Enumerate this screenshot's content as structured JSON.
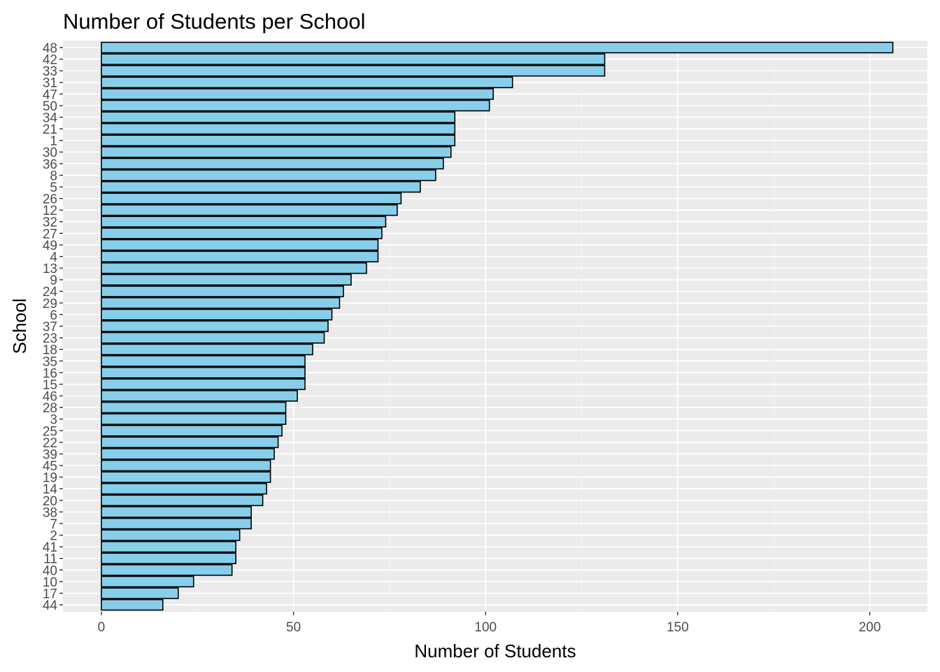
{
  "chart_data": {
    "type": "bar",
    "orientation": "horizontal",
    "title": "Number of Students per School",
    "xlabel": "Number of Students",
    "ylabel": "School",
    "xlim": [
      -10,
      215
    ],
    "x_ticks": [
      0,
      50,
      100,
      150,
      200
    ],
    "grid": true,
    "legend": "none",
    "bar_color": "#87CEEB",
    "bar_border": "#000000",
    "panel_background": "#EBEBEB",
    "categories": [
      "48",
      "42",
      "33",
      "31",
      "47",
      "50",
      "34",
      "21",
      "1",
      "30",
      "36",
      "8",
      "5",
      "26",
      "12",
      "32",
      "27",
      "49",
      "4",
      "13",
      "9",
      "24",
      "29",
      "6",
      "37",
      "23",
      "18",
      "35",
      "16",
      "15",
      "46",
      "28",
      "3",
      "25",
      "22",
      "39",
      "45",
      "19",
      "14",
      "20",
      "38",
      "7",
      "2",
      "41",
      "11",
      "40",
      "10",
      "17",
      "44"
    ],
    "values": [
      206,
      131,
      131,
      107,
      102,
      101,
      92,
      92,
      92,
      91,
      89,
      87,
      83,
      78,
      77,
      74,
      73,
      72,
      72,
      69,
      65,
      63,
      62,
      60,
      59,
      58,
      55,
      53,
      53,
      53,
      51,
      48,
      48,
      47,
      46,
      45,
      44,
      44,
      43,
      42,
      39,
      39,
      36,
      35,
      35,
      34,
      24,
      20,
      16
    ]
  }
}
